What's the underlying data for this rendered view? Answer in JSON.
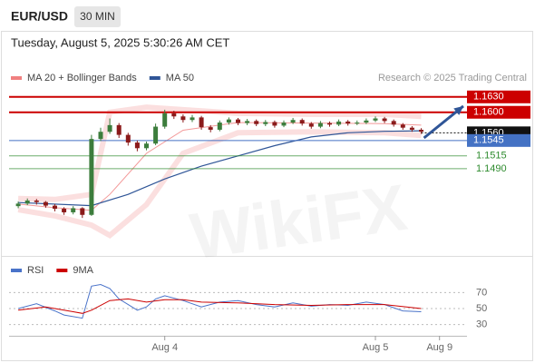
{
  "header": {
    "symbol": "EUR/USD",
    "timeframe": "30 MIN",
    "timestamp": "Tuesday, August 5, 2025 5:30:26 AM CET"
  },
  "chart_data": [
    {
      "type": "candlestick",
      "credit": "Research © 2025 Trading Central",
      "watermark": "WikiFX",
      "xlim": [
        -1,
        49
      ],
      "ylim": [
        1.132,
        1.1642
      ],
      "candles": {
        "up_color": "#3c7d3c",
        "down_color": "#8b1a1a",
        "open": [
          1.1417,
          1.1422,
          1.1428,
          1.1425,
          1.1418,
          1.1412,
          1.1405,
          1.1413,
          1.14,
          1.1548,
          1.1562,
          1.1575,
          1.1556,
          1.1541,
          1.153,
          1.1539,
          1.1572,
          1.1598,
          1.1592,
          1.1585,
          1.159,
          1.1571,
          1.1566,
          1.158,
          1.1586,
          1.1579,
          1.1583,
          1.1577,
          1.1581,
          1.1574,
          1.158,
          1.1585,
          1.1578,
          1.1572,
          1.1579,
          1.1576,
          1.1582,
          1.1578,
          1.158,
          1.1584,
          1.1588,
          1.1583,
          1.1576,
          1.157,
          1.1566
        ],
        "high": [
          1.1426,
          1.1432,
          1.1431,
          1.1427,
          1.1421,
          1.1415,
          1.1417,
          1.1415,
          1.1556,
          1.157,
          1.1588,
          1.1579,
          1.156,
          1.1545,
          1.1543,
          1.1578,
          1.1605,
          1.1603,
          1.1596,
          1.1595,
          1.1593,
          1.1575,
          1.1584,
          1.159,
          1.1589,
          1.1587,
          1.1586,
          1.1585,
          1.1584,
          1.1584,
          1.1589,
          1.1588,
          1.1581,
          1.1583,
          1.1582,
          1.1586,
          1.1585,
          1.1584,
          1.1588,
          1.1592,
          1.1591,
          1.1586,
          1.1579,
          1.1573,
          1.1569
        ],
        "low": [
          1.1413,
          1.1419,
          1.142,
          1.1414,
          1.1407,
          1.14,
          1.1401,
          1.1394,
          1.1398,
          1.1544,
          1.1558,
          1.155,
          1.1535,
          1.1524,
          1.1526,
          1.1536,
          1.1568,
          1.1587,
          1.158,
          1.1581,
          1.1566,
          1.1561,
          1.1563,
          1.1576,
          1.1575,
          1.1575,
          1.1573,
          1.1573,
          1.157,
          1.1571,
          1.1577,
          1.1574,
          1.1568,
          1.1569,
          1.1572,
          1.1573,
          1.1574,
          1.1575,
          1.1577,
          1.1581,
          1.1579,
          1.1572,
          1.1566,
          1.1562,
          1.1558
        ],
        "close": [
          1.1422,
          1.1428,
          1.1425,
          1.1418,
          1.1412,
          1.1405,
          1.1413,
          1.14,
          1.1548,
          1.1562,
          1.1575,
          1.1556,
          1.1541,
          1.153,
          1.1539,
          1.1572,
          1.1598,
          1.1592,
          1.1585,
          1.159,
          1.1571,
          1.1566,
          1.158,
          1.1586,
          1.1579,
          1.1583,
          1.1577,
          1.1581,
          1.1574,
          1.158,
          1.1585,
          1.1578,
          1.1572,
          1.1579,
          1.1576,
          1.1582,
          1.1578,
          1.158,
          1.1584,
          1.1588,
          1.1583,
          1.1576,
          1.157,
          1.1566,
          1.1562
        ]
      },
      "series": [
        {
          "name": "MA 20 + Bollinger Bands",
          "color": "#f08080",
          "x": [
            0,
            4,
            8,
            10,
            14,
            18,
            24,
            32,
            40,
            44
          ],
          "values": [
            1.1421,
            1.1414,
            1.1409,
            1.144,
            1.152,
            1.1565,
            1.158,
            1.1579,
            1.1578,
            1.1575
          ],
          "upper": [
            1.1432,
            1.143,
            1.144,
            1.16,
            1.161,
            1.1605,
            1.1598,
            1.1596,
            1.1596,
            1.1592
          ],
          "lower": [
            1.141,
            1.1398,
            1.138,
            1.136,
            1.142,
            1.152,
            1.156,
            1.1562,
            1.156,
            1.1555
          ]
        },
        {
          "name": "MA 50",
          "color": "#2f5597",
          "x": [
            0,
            8,
            12,
            16,
            20,
            24,
            28,
            32,
            36,
            40,
            44
          ],
          "values": [
            1.1424,
            1.1418,
            1.144,
            1.147,
            1.1495,
            1.1515,
            1.1535,
            1.1552,
            1.156,
            1.1563,
            1.1564
          ]
        }
      ],
      "levels": [
        {
          "value": 1.163,
          "label": "1.1630",
          "color": "#cc0000",
          "boxed": true,
          "dashed": false
        },
        {
          "value": 1.16,
          "label": "1.1600",
          "color": "#cc0000",
          "boxed": true,
          "dashed": false
        },
        {
          "value": 1.156,
          "label": "1.1560",
          "color": "#111111",
          "boxed": true,
          "dashed": true
        },
        {
          "value": 1.1545,
          "label": "1.1545",
          "color": "#4472c4",
          "boxed": true,
          "dashed": false
        },
        {
          "value": 1.1515,
          "label": "1.1515",
          "color": "#2e8b2e",
          "boxed": false,
          "dashed": false
        },
        {
          "value": 1.149,
          "label": "1.1490",
          "color": "#2e8b2e",
          "boxed": false,
          "dashed": false
        }
      ],
      "arrow": {
        "x": [
          44.3,
          48.6
        ],
        "values": [
          1.155,
          1.1612
        ],
        "color": "#2f5597"
      }
    },
    {
      "type": "line",
      "xlim": [
        -1,
        49
      ],
      "ylim": [
        16,
        84
      ],
      "yticks": [
        30,
        50,
        70
      ],
      "xticks": [
        {
          "value": 16,
          "label": "Aug 4"
        },
        {
          "value": 39,
          "label": "Aug 5"
        },
        {
          "value": 46,
          "label": "Aug 9"
        }
      ],
      "series": [
        {
          "name": "RSI",
          "color": "#4a73c9",
          "x": [
            0,
            2,
            4,
            5,
            7,
            8,
            9,
            10,
            11,
            12,
            13,
            14,
            15,
            16,
            18,
            20,
            22,
            24,
            26,
            28,
            30,
            32,
            34,
            36,
            38,
            40,
            42,
            44
          ],
          "values": [
            50,
            56,
            47,
            42,
            38,
            78,
            80,
            75,
            62,
            55,
            48,
            52,
            62,
            66,
            60,
            52,
            58,
            60,
            55,
            52,
            57,
            53,
            55,
            54,
            58,
            55,
            47,
            46
          ]
        },
        {
          "name": "9MA",
          "color": "#cc0000",
          "x": [
            0,
            3,
            6,
            7,
            8,
            10,
            12,
            14,
            16,
            18,
            20,
            24,
            28,
            32,
            36,
            40,
            44
          ],
          "values": [
            48,
            52,
            46,
            44,
            48,
            60,
            62,
            58,
            61,
            61,
            58,
            57,
            55,
            54,
            55,
            55,
            50
          ]
        }
      ]
    }
  ]
}
